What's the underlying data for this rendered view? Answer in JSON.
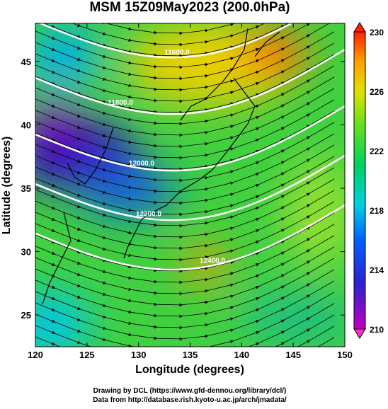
{
  "title": "MSM 15Z09May2023 (200.0hPa)",
  "x_axis": {
    "label": "Longitude (degrees)",
    "lim": [
      120,
      150
    ],
    "ticks": [
      120,
      125,
      130,
      135,
      140,
      145,
      150
    ]
  },
  "y_axis": {
    "label": "Latitude  (degrees)",
    "lim": [
      22.5,
      48
    ],
    "ticks": [
      25,
      30,
      35,
      40,
      45
    ]
  },
  "colorbar": {
    "lim": [
      210,
      230
    ],
    "ticks": [
      210,
      214,
      218,
      222,
      226,
      230
    ]
  },
  "contour_labels": [
    "11600.0",
    "11800.0",
    "12000.0",
    "12200.0",
    "12400.0"
  ],
  "footer": [
    "Drawing by DCL (https://www.gfd-dennou.org/library/dcl/)",
    "Data from http://database.rish.kyoto-u.ac.jp/arch/jmadata/"
  ]
}
